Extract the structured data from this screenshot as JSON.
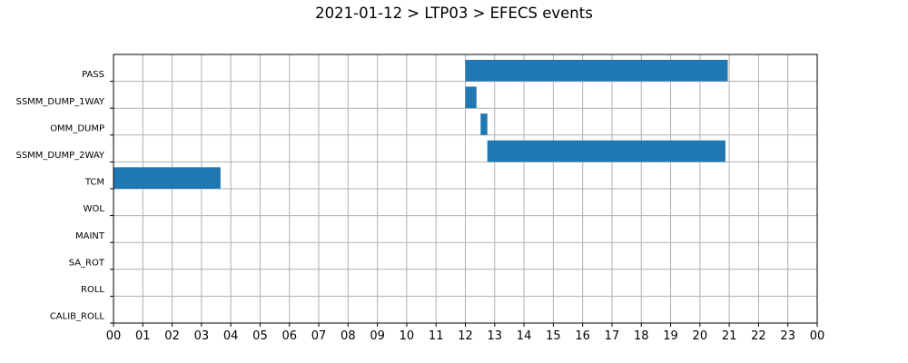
{
  "chart_data": {
    "type": "bar",
    "orientation": "horizontal-timeline",
    "title": "2021-01-12 > LTP03 > EFECS events",
    "xlabel": "",
    "ylabel": "",
    "categories": [
      "PASS",
      "SSMM_DUMP_1WAY",
      "OMM_DUMP",
      "SSMM_DUMP_2WAY",
      "TCM",
      "WOL",
      "MAINT",
      "SA_ROT",
      "ROLL",
      "CALIB_ROLL"
    ],
    "x_ticks": [
      "00",
      "01",
      "02",
      "03",
      "04",
      "05",
      "06",
      "07",
      "08",
      "09",
      "10",
      "11",
      "12",
      "13",
      "14",
      "15",
      "16",
      "17",
      "18",
      "19",
      "20",
      "21",
      "22",
      "23",
      "00"
    ],
    "xlim_hours": [
      0,
      24
    ],
    "grid": true,
    "bar_color": "#1f77b4",
    "series": [
      {
        "values": [
          {
            "category": "PASS",
            "start": 12.0,
            "end": 20.95
          },
          {
            "category": "SSMM_DUMP_1WAY",
            "start": 12.0,
            "end": 12.38
          },
          {
            "category": "OMM_DUMP",
            "start": 12.52,
            "end": 12.75
          },
          {
            "category": "SSMM_DUMP_2WAY",
            "start": 12.75,
            "end": 20.87
          },
          {
            "category": "TCM",
            "start": 0.0,
            "end": 3.65
          }
        ]
      }
    ]
  }
}
